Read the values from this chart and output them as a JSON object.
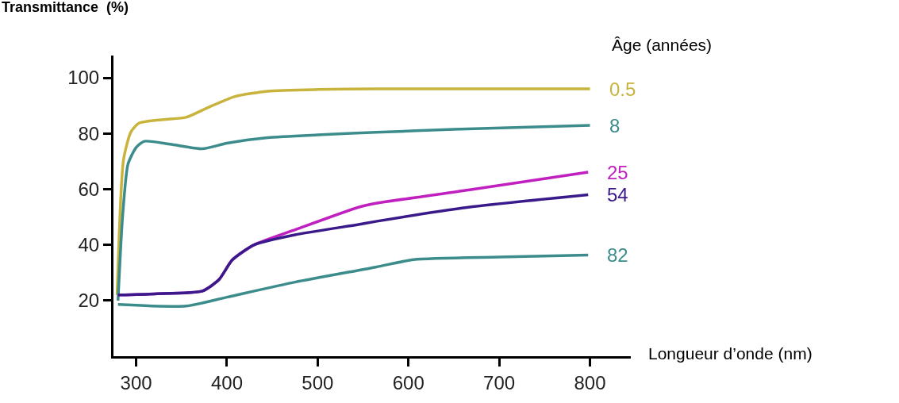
{
  "chart_data": {
    "type": "line",
    "xlabel": "Longueur d’onde (nm)",
    "ylabel": "Transmittance  (%)",
    "legend_title": "Âge (années)",
    "xlim": [
      275,
      845
    ],
    "ylim": [
      0,
      108
    ],
    "xticks": [
      300,
      400,
      500,
      600,
      700,
      800
    ],
    "yticks": [
      20,
      40,
      60,
      80,
      100
    ],
    "legend": false,
    "marker": "none",
    "line_style": "solid",
    "series": [
      {
        "name": "0.5",
        "color": "#c8b43c",
        "x": [
          279,
          286,
          294,
          303,
          330,
          355,
          379,
          409,
          445,
          500,
          564,
          650,
          800
        ],
        "values": [
          22,
          70.4,
          80.4,
          83.7,
          85,
          85.8,
          89.3,
          93.3,
          95.2,
          95.8,
          96,
          96,
          96
        ]
      },
      {
        "name": "8",
        "color": "#3c8c8c",
        "x": [
          280,
          285,
          291,
          300,
          309,
          340,
          373,
          400,
          445,
          500,
          564,
          650,
          800
        ],
        "values": [
          20,
          50,
          69,
          75,
          77.2,
          76,
          74.5,
          76.5,
          78.5,
          79.5,
          80.4,
          81.5,
          82.9
        ]
      },
      {
        "name": "25",
        "color": "#c020c0",
        "x": [
          280,
          320,
          373,
          391,
          406,
          430,
          475,
          545,
          564,
          666,
          798
        ],
        "values": [
          22,
          22.4,
          23.4,
          27.4,
          34.6,
          40,
          45.4,
          53.5,
          54.9,
          59.7,
          66.1
        ]
      },
      {
        "name": "54",
        "color": "#3a1a8a",
        "x": [
          280,
          320,
          373,
          391,
          406,
          430,
          475,
          545,
          564,
          666,
          798
        ],
        "values": [
          22,
          22.4,
          23.4,
          27.4,
          34.6,
          40,
          43.6,
          47.3,
          48.4,
          53.5,
          58
        ]
      },
      {
        "name": "82",
        "color": "#3c8c8c",
        "x": [
          280,
          355,
          400,
          475,
          564,
          606,
          700,
          798
        ],
        "values": [
          18.6,
          18,
          21.2,
          26.6,
          32,
          34.7,
          35.6,
          36.3
        ]
      }
    ]
  }
}
